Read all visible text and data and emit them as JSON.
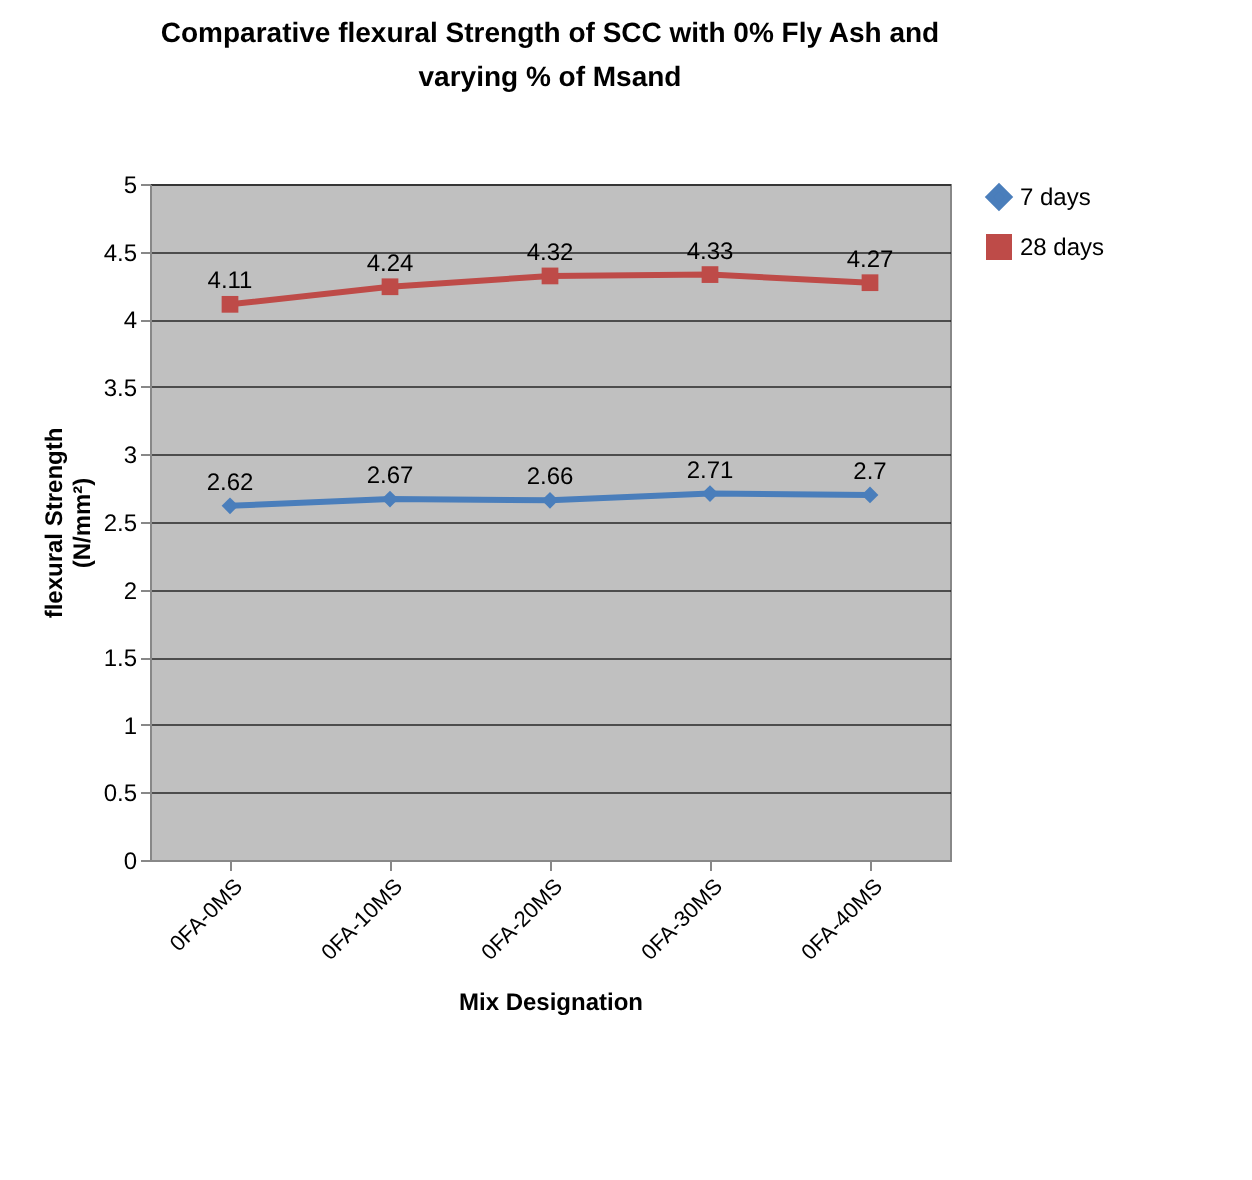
{
  "chart_data": {
    "type": "line",
    "title": "Comparative flexural Strength of SCC with 0% Fly Ash and varying % of Msand",
    "xlabel": "Mix Designation",
    "ylabel": "flexural Strength (N/mm²)",
    "categories": [
      "0FA-0MS",
      "0FA-10MS",
      "0FA-20MS",
      "0FA-30MS",
      "0FA-40MS"
    ],
    "series": [
      {
        "name": "7 days",
        "color": "#4a7ebb",
        "marker": "diamond",
        "values": [
          2.62,
          2.67,
          2.66,
          2.71,
          2.7
        ]
      },
      {
        "name": "28 days",
        "color": "#be4b48",
        "marker": "square",
        "values": [
          4.11,
          4.24,
          4.32,
          4.33,
          4.27
        ]
      }
    ],
    "ylim": [
      0,
      5
    ],
    "yticks": [
      0,
      0.5,
      1,
      1.5,
      2,
      2.5,
      3,
      3.5,
      4,
      4.5,
      5
    ],
    "grid": "y",
    "legend": "right",
    "data_labels": true
  }
}
